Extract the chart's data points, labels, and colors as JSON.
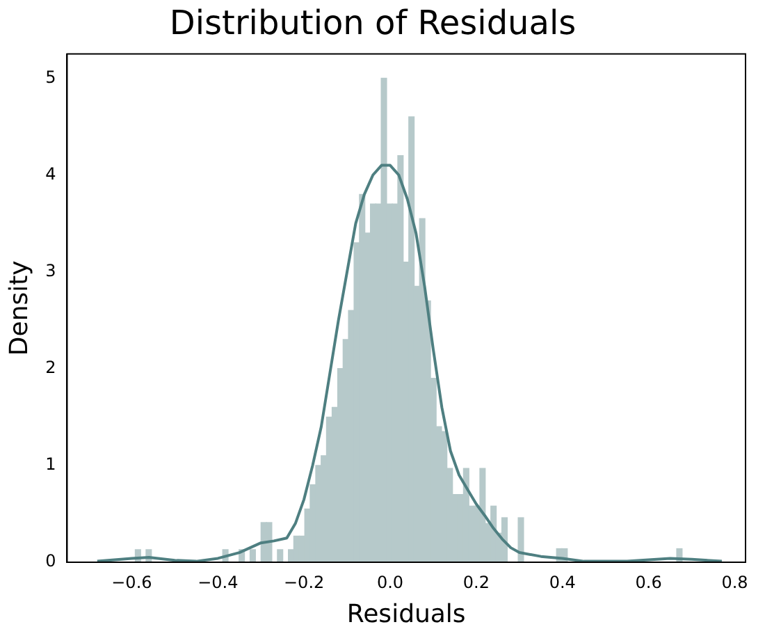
{
  "chart_data": {
    "type": "histogram",
    "title": "Distribution of Residuals",
    "xlabel": "Residuals",
    "ylabel": "Density",
    "bins": [
      -0.592,
      -0.579,
      -0.567,
      -0.554,
      -0.541,
      -0.529,
      -0.516,
      -0.503,
      -0.49,
      -0.478,
      -0.465,
      -0.452,
      -0.44,
      -0.427,
      -0.414,
      -0.402,
      -0.389,
      -0.376,
      -0.363,
      -0.351,
      -0.338,
      -0.325,
      -0.313,
      -0.3,
      -0.287,
      -0.275,
      -0.262,
      -0.249,
      -0.236,
      -0.224,
      -0.211,
      -0.198,
      -0.186,
      -0.173,
      -0.16,
      -0.148,
      -0.135,
      -0.122,
      -0.109,
      -0.097,
      -0.084,
      -0.071,
      -0.059,
      -0.046,
      -0.033,
      -0.021,
      -0.008,
      0.005,
      0.018,
      0.03,
      0.043,
      0.056,
      0.068,
      0.081,
      0.094,
      0.107,
      0.119,
      0.132,
      0.145,
      0.157,
      0.17,
      0.183,
      0.195,
      0.208,
      0.221,
      0.234,
      0.246,
      0.259,
      0.272,
      0.284,
      0.297,
      0.31,
      0.322,
      0.335,
      0.348,
      0.361,
      0.373,
      0.386,
      0.399,
      0.411,
      0.424,
      0.437,
      0.449,
      0.462,
      0.475,
      0.487,
      0.5,
      0.513,
      0.526,
      0.538,
      0.551,
      0.564,
      0.576,
      0.589,
      0.602,
      0.615,
      0.627,
      0.64,
      0.653,
      0.665,
      0.678
    ],
    "values": [
      0.13,
      0,
      0.13,
      0,
      0,
      0,
      0,
      0,
      0,
      0,
      0,
      0,
      0,
      0,
      0,
      0,
      0.13,
      0,
      0,
      0.13,
      0,
      0.13,
      0,
      0.41,
      0.41,
      0,
      0.13,
      0,
      0.13,
      0.27,
      0.27,
      0.55,
      0.8,
      1.0,
      1.1,
      1.5,
      1.6,
      2.0,
      2.3,
      2.6,
      3.3,
      3.8,
      3.4,
      3.7,
      3.7,
      5.0,
      3.7,
      3.7,
      4.2,
      3.1,
      4.6,
      2.85,
      3.55,
      2.7,
      1.9,
      1.4,
      1.35,
      0.97,
      0.7,
      0.7,
      0.97,
      0.58,
      0.58,
      0.97,
      0.4,
      0.58,
      0.3,
      0.46,
      0,
      0,
      0.46,
      0,
      0,
      0,
      0,
      0,
      0,
      0.14,
      0.14,
      0,
      0,
      0,
      0,
      0,
      0,
      0,
      0,
      0,
      0,
      0,
      0,
      0,
      0,
      0,
      0,
      0,
      0,
      0,
      0,
      0.14
    ],
    "color": "#b6c9ca",
    "series": [
      {
        "type": "line",
        "color": "#4e7f81",
        "x": [
          -0.68,
          -0.6,
          -0.56,
          -0.5,
          -0.45,
          -0.4,
          -0.35,
          -0.3,
          -0.27,
          -0.24,
          -0.22,
          -0.2,
          -0.18,
          -0.16,
          -0.14,
          -0.12,
          -0.1,
          -0.08,
          -0.06,
          -0.04,
          -0.02,
          0,
          0.02,
          0.04,
          0.06,
          0.08,
          0.1,
          0.12,
          0.14,
          0.16,
          0.18,
          0.2,
          0.22,
          0.24,
          0.26,
          0.28,
          0.3,
          0.35,
          0.4,
          0.45,
          0.55,
          0.65,
          0.7,
          0.77
        ],
        "values": [
          0.01,
          0.04,
          0.05,
          0.02,
          0.01,
          0.04,
          0.1,
          0.2,
          0.22,
          0.25,
          0.4,
          0.65,
          1.0,
          1.4,
          1.95,
          2.5,
          3.0,
          3.5,
          3.8,
          4.0,
          4.1,
          4.1,
          4.0,
          3.75,
          3.4,
          2.85,
          2.2,
          1.6,
          1.15,
          0.9,
          0.75,
          0.6,
          0.48,
          0.35,
          0.24,
          0.15,
          0.1,
          0.06,
          0.04,
          0.01,
          0.01,
          0.04,
          0.03,
          0.01
        ]
      }
    ],
    "xlim": [
      -0.75,
      0.825
    ],
    "xticks": [
      {
        "value": -0.6,
        "label": "−0.6"
      },
      {
        "value": -0.4,
        "label": "−0.4"
      },
      {
        "value": -0.2,
        "label": "−0.2"
      },
      {
        "value": 0,
        "label": "0.0"
      },
      {
        "value": 0.2,
        "label": "0.2"
      },
      {
        "value": 0.4,
        "label": "0.4"
      },
      {
        "value": 0.6,
        "label": "0.6"
      },
      {
        "value": 0.8,
        "label": "0.8"
      }
    ],
    "ylim": [
      0,
      5.25
    ],
    "yticks": [
      0,
      1,
      2,
      3,
      4,
      5
    ],
    "grid": false,
    "legend": false,
    "marker": "none",
    "line_style": "solid"
  }
}
